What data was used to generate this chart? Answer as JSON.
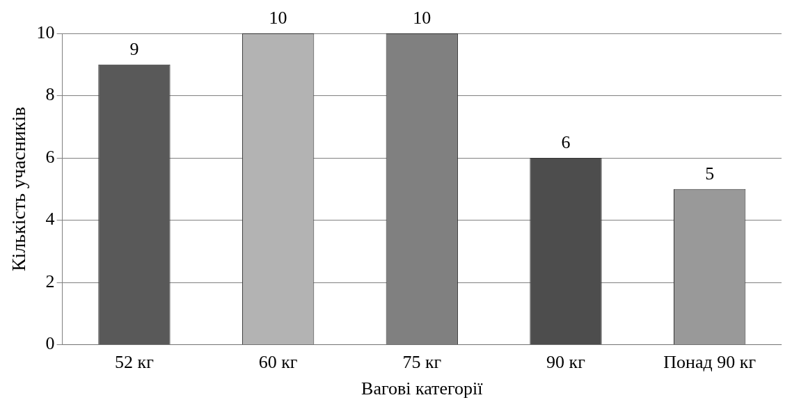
{
  "chart_data": {
    "type": "bar",
    "xlabel": "Вагові категорії",
    "ylabel": "Кількість учасників",
    "categories": [
      "52 кг",
      "60 кг",
      "75 кг",
      "90 кг",
      "Понад 90 кг"
    ],
    "values": [
      9,
      10,
      10,
      6,
      5
    ],
    "colors": [
      "#595959",
      "#b3b3b3",
      "#808080",
      "#4d4d4d",
      "#999999"
    ],
    "ylim": [
      0,
      10
    ],
    "yticks": [
      0,
      2,
      4,
      6,
      8,
      10
    ],
    "grid": "y",
    "data_labels": true,
    "legend": false
  }
}
